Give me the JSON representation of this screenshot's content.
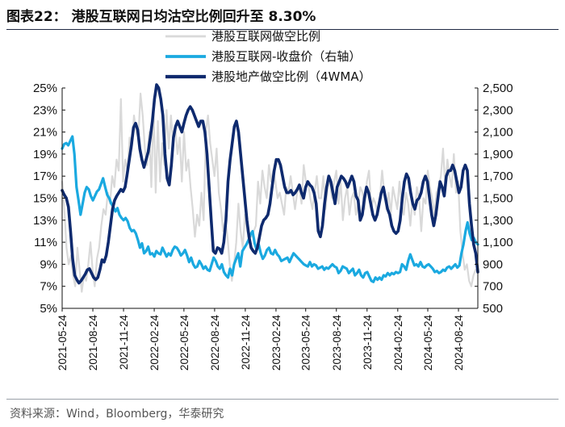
{
  "title": "图表22：  港股互联网日均沽空比例回升至 8.30%",
  "source": "资料来源：Wind，Bloomberg，华泰研究",
  "colors": {
    "gray": "#d9d9d9",
    "light_blue": "#1aa9e0",
    "navy": "#0e2a6e",
    "axis": "#111111"
  },
  "chart_data": {
    "type": "line",
    "title": "港股互联网日均沽空比例回升至 8.30%",
    "legend": [
      "港股互联网做空比例",
      "港股互联网-收盘价（右轴）",
      "港股地产做空比例（4WMA）"
    ],
    "left_axis": {
      "min": 5,
      "max": 25,
      "ticks": [
        "5%",
        "7%",
        "9%",
        "11%",
        "13%",
        "15%",
        "17%",
        "19%",
        "21%",
        "23%",
        "25%"
      ]
    },
    "right_axis": {
      "min": 500,
      "max": 2500,
      "ticks": [
        "500",
        "700",
        "900",
        "1,100",
        "1,300",
        "1,500",
        "1,700",
        "1,900",
        "2,100",
        "2,300",
        "2,500"
      ]
    },
    "x_ticks": [
      "2021-05-24",
      "2021-08-24",
      "2021-11-24",
      "2022-02-24",
      "2022-05-24",
      "2022-08-24",
      "2022-11-24",
      "2023-02-24",
      "2023-05-24",
      "2023-08-24",
      "2023-11-24",
      "2024-02-24",
      "2024-05-24",
      "2024-08-24"
    ],
    "x_range": [
      "2021-05-24",
      "2024-10-21"
    ],
    "series": [
      {
        "name": "港股互联网做空比例",
        "axis": "left",
        "values": [
          16.5,
          14.0,
          10.5,
          9.0,
          9.8,
          8.0,
          7.0,
          10.5,
          8.5,
          6.5,
          8.0,
          7.5,
          9.0,
          11.0,
          8.5,
          7.0,
          9.5,
          10.5,
          12.5,
          14.0,
          13.5,
          15.5,
          14.5,
          17.0,
          16.0,
          18.5,
          17.5,
          24.0,
          16.5,
          18.5,
          17.5,
          20.5,
          19.5,
          22.5,
          21.0,
          20.5,
          24.5,
          22.5,
          19.5,
          18.0,
          21.0,
          16.0,
          23.5,
          15.5,
          22.0,
          16.5,
          20.0,
          18.0,
          23.0,
          19.5,
          22.5,
          20.0,
          21.5,
          19.0,
          20.5,
          16.5,
          21.0,
          17.5,
          18.5,
          16.0,
          14.0,
          11.5,
          13.5,
          12.5,
          15.5,
          13.0,
          21.0,
          22.5,
          20.0,
          18.5,
          17.0,
          19.5,
          15.5,
          14.0,
          12.0,
          13.0,
          11.5,
          9.0,
          7.5,
          9.0,
          11.0,
          14.5,
          12.0,
          10.5,
          13.5,
          12.0,
          11.5,
          11.5,
          12.0,
          12.5,
          16.5,
          14.5,
          17.5,
          16.0,
          15.0,
          18.0,
          16.5,
          17.5,
          16.5,
          15.0,
          15.5,
          14.5,
          13.5,
          16.0,
          15.5,
          17.0,
          15.5,
          14.0,
          15.5,
          16.0,
          14.5,
          18.0,
          16.5,
          16.5,
          15.0,
          14.0,
          15.5,
          17.0,
          15.0,
          15.0,
          17.0,
          14.0,
          16.0,
          16.5,
          15.0,
          16.5,
          17.5,
          14.5,
          16.5,
          13.0,
          15.0,
          16.0,
          13.5,
          15.0,
          15.5,
          13.5,
          14.5,
          16.0,
          15.5,
          14.0,
          16.5,
          17.5,
          14.0,
          15.0,
          14.5,
          13.5,
          15.0,
          17.5,
          15.5,
          14.0,
          15.5,
          13.5,
          16.0,
          15.0,
          14.0,
          16.5,
          14.5,
          13.5,
          15.5,
          14.5,
          12.5,
          15.0,
          13.5,
          16.0,
          15.0,
          12.0,
          15.0,
          14.5,
          17.5,
          16.0,
          15.0,
          13.5,
          15.5,
          16.0,
          17.0,
          19.5,
          16.0,
          18.5,
          17.0,
          16.0,
          19.0,
          15.5,
          16.5,
          12.0,
          10.0,
          8.5,
          9.0,
          7.5,
          7.0,
          8.0,
          8.5,
          8.3
        ]
      },
      {
        "name": "港股互联网-收盘价（右轴）",
        "axis": "right",
        "values": [
          1950,
          1990,
          2000,
          1980,
          2020,
          2060,
          1900,
          1600,
          1480,
          1350,
          1450,
          1550,
          1600,
          1580,
          1520,
          1480,
          1520,
          1560,
          1580,
          1630,
          1680,
          1600,
          1530,
          1500,
          1450,
          1420,
          1380,
          1410,
          1350,
          1320,
          1300,
          1320,
          1290,
          1230,
          1200,
          1210,
          1180,
          1120,
          1050,
          1090,
          1000,
          1020,
          1060,
          990,
          1000,
          970,
          1020,
          1000,
          990,
          1050,
          1010,
          970,
          1000,
          980,
          1030,
          1060,
          1050,
          1020,
          980,
          1000,
          1030,
          980,
          920,
          960,
          900,
          870,
          880,
          930,
          900,
          860,
          880,
          850,
          840,
          900,
          960,
          930,
          880,
          860,
          900,
          830,
          800,
          780,
          860,
          800,
          900,
          950,
          1000,
          880,
          1020,
          1050,
          1080,
          1120,
          1170,
          1200,
          1090,
          1030,
          1080,
          1000,
          950,
          980,
          1030,
          1050,
          1000,
          990,
          1030,
          990,
          970,
          930,
          940,
          950,
          960,
          920,
          960,
          1000,
          980,
          960,
          940,
          920,
          900,
          890,
          880,
          920,
          880,
          900,
          890,
          860,
          870,
          880,
          850,
          870,
          860,
          880,
          900,
          880,
          870,
          820,
          840,
          880,
          870,
          860,
          820,
          840,
          860,
          800,
          820,
          850,
          800,
          780,
          820,
          830,
          790,
          750,
          740,
          780,
          760,
          780,
          760,
          800,
          790,
          820,
          800,
          820,
          810,
          830,
          820,
          830,
          900,
          880,
          850,
          930,
          990,
          940,
          890,
          900,
          880,
          920,
          880,
          870,
          890,
          900,
          880,
          860,
          830,
          840,
          820,
          830,
          850,
          840,
          870,
          880,
          860,
          880,
          900,
          870,
          890,
          1000,
          1080,
          1200,
          1280,
          1180,
          1120,
          1140,
          1100,
          1080
        ]
      },
      {
        "name": "港股地产做空比例（4WMA）",
        "axis": "left",
        "values": [
          15.7,
          15.3,
          15.0,
          14.2,
          12.0,
          9.5,
          8.0,
          7.6,
          7.3,
          7.5,
          7.8,
          8.1,
          8.5,
          8.6,
          8.2,
          7.8,
          7.6,
          7.8,
          8.5,
          9.4,
          9.2,
          9.8,
          11.0,
          12.5,
          14.0,
          14.8,
          15.2,
          15.5,
          15.8,
          15.6,
          16.0,
          17.2,
          18.5,
          19.8,
          21.4,
          21.8,
          21.2,
          19.5,
          18.5,
          17.8,
          18.5,
          19.2,
          20.5,
          22.0,
          24.0,
          25.5,
          25.0,
          24.0,
          22.5,
          19.0,
          16.8,
          16.2,
          18.0,
          20.5,
          21.5,
          22.0,
          21.5,
          21.0,
          21.8,
          22.5,
          23.0,
          23.3,
          23.0,
          22.5,
          22.0,
          21.5,
          22.0,
          22.0,
          21.0,
          19.0,
          16.0,
          13.0,
          10.2,
          10.0,
          10.5,
          10.4,
          10.0,
          11.0,
          13.0,
          16.5,
          18.5,
          20.0,
          21.5,
          22.0,
          21.0,
          19.0,
          17.0,
          15.0,
          13.0,
          11.5,
          10.5,
          10.2,
          10.0,
          10.5,
          11.5,
          12.5,
          13.0,
          13.2,
          13.5,
          14.5,
          16.0,
          17.5,
          18.5,
          18.5,
          18.0,
          17.0,
          16.0,
          15.5,
          15.5,
          15.7,
          15.3,
          15.5,
          15.8,
          16.2,
          15.5,
          15.0,
          16.0,
          16.5,
          16.2,
          16.0,
          15.5,
          14.5,
          12.0,
          11.5,
          12.5,
          14.5,
          16.0,
          17.0,
          16.5,
          15.5,
          14.5,
          16.0,
          16.5,
          17.0,
          16.8,
          16.5,
          16.0,
          16.5,
          17.0,
          16.5,
          15.2,
          14.8,
          13.0,
          13.5,
          15.0,
          16.0,
          15.5,
          14.5,
          13.5,
          13.0,
          13.5,
          14.5,
          15.5,
          16.0,
          15.0,
          14.0,
          13.5,
          12.5,
          12.0,
          11.8,
          12.0,
          13.0,
          15.0,
          16.5,
          17.2,
          16.8,
          15.5,
          14.5,
          14.0,
          14.8,
          15.0,
          15.5,
          16.5,
          17.0,
          16.5,
          15.0,
          13.5,
          12.5,
          13.5,
          15.0,
          16.5,
          16.0,
          15.2,
          17.0,
          17.5,
          17.5,
          18.0,
          17.5,
          16.5,
          15.5,
          16.0,
          17.5,
          18.0,
          17.5,
          14.5,
          12.5,
          10.8,
          10.0,
          8.3
        ]
      }
    ]
  }
}
